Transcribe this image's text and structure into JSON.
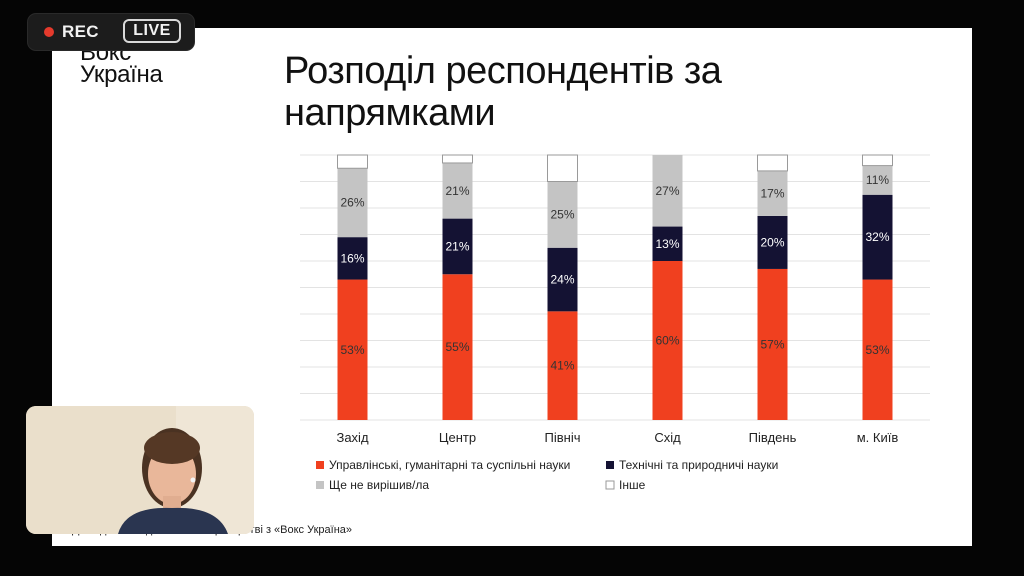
{
  "recording": {
    "rec_label": "REC",
    "live_label": "LIVE"
  },
  "slide": {
    "logo_line1": "Вокс",
    "logo_line2": "Україна",
    "title": "Розподіл респондентів за напрямками",
    "footnote": "Дослідження здійснено в партнерстві з «Вокс Україна»"
  },
  "colors": {
    "humanities": "#f0401f",
    "technical": "#141233",
    "undecided": "#c4c4c4",
    "other": "#ffffff"
  },
  "chart_data": {
    "type": "bar",
    "stacked": true,
    "categories": [
      "Захід",
      "Центр",
      "Північ",
      "Схід",
      "Південь",
      "м. Київ"
    ],
    "series": [
      {
        "name": "Управлінські, гуманітарні та суспільні науки",
        "values": [
          53,
          55,
          41,
          60,
          57,
          53
        ],
        "color": "#f0401f",
        "label_color": "#333333"
      },
      {
        "name": "Технічні та природничі науки",
        "values": [
          16,
          21,
          24,
          13,
          20,
          32
        ],
        "color": "#141233",
        "label_color": "#ffffff"
      },
      {
        "name": "Ще не вирішив/ла",
        "values": [
          26,
          21,
          25,
          27,
          17,
          11
        ],
        "color": "#c4c4c4",
        "label_color": "#333333"
      },
      {
        "name": "Інше",
        "values": [
          5,
          3,
          10,
          0,
          6,
          4
        ],
        "color": "#ffffff",
        "label_color": ""
      }
    ],
    "data_labels": [
      [
        "53%",
        "55%",
        "41%",
        "60%",
        "57%",
        "53%"
      ],
      [
        "16%",
        "21%",
        "24%",
        "13%",
        "20%",
        "32%"
      ],
      [
        "26%",
        "21%",
        "25%",
        "27%",
        "17%",
        "11%"
      ],
      [
        "",
        "",
        "",
        "",
        "",
        ""
      ]
    ],
    "ylim": [
      0,
      100
    ],
    "grid": true,
    "legend_position": "bottom"
  }
}
